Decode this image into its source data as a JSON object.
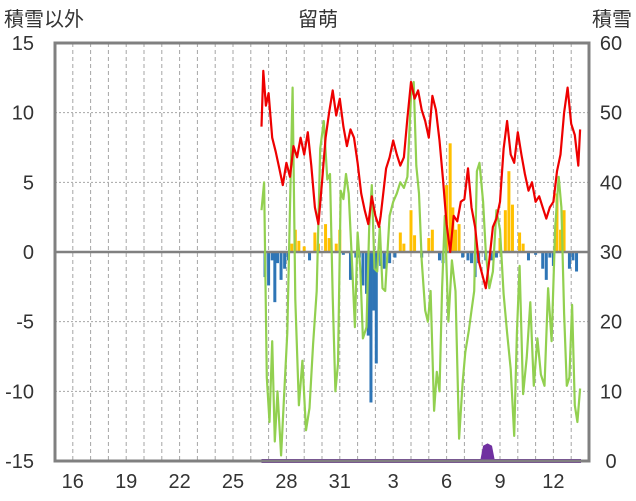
{
  "chart_data": {
    "type": "line",
    "title": "留萌",
    "left_axis_label": "積雪以外",
    "right_axis_label": "積雪",
    "ylim_left": [
      -15,
      15
    ],
    "yticks_left": [
      15,
      10,
      5,
      0,
      -5,
      -10,
      -15
    ],
    "ylim_right": [
      0,
      60
    ],
    "yticks_right": [
      60,
      50,
      40,
      30,
      20,
      10,
      0
    ],
    "xlim_days": [
      0,
      30
    ],
    "xtick_labels": [
      "16",
      "19",
      "22",
      "25",
      "28",
      "31",
      "3",
      "6",
      "9",
      "12"
    ],
    "xtick_days": [
      1,
      4,
      7,
      10,
      13,
      16,
      19,
      22,
      25,
      28
    ],
    "colors": {
      "temperature": "#ee0000",
      "sunshine": "#92d050",
      "precipitation_positive": "#ffc000",
      "precipitation_negative": "#2e75b6",
      "snow_depth": "#7030a0",
      "zero_line": "#808080",
      "frame": "#808080",
      "grid": "#a6a6a6"
    },
    "series": [
      {
        "axis": "left",
        "color": "#ee0000",
        "points": [
          [
            11.6,
            9.0
          ],
          [
            11.7,
            13.0
          ],
          [
            11.85,
            10.5
          ],
          [
            12.0,
            11.4
          ],
          [
            12.2,
            8.2
          ],
          [
            12.4,
            7.2
          ],
          [
            12.6,
            6.0
          ],
          [
            12.8,
            4.8
          ],
          [
            13.0,
            6.4
          ],
          [
            13.2,
            5.4
          ],
          [
            13.4,
            7.6
          ],
          [
            13.6,
            6.8
          ],
          [
            13.8,
            8.2
          ],
          [
            14.0,
            7.0
          ],
          [
            14.2,
            8.6
          ],
          [
            14.4,
            6.2
          ],
          [
            14.6,
            3.2
          ],
          [
            14.8,
            2.0
          ],
          [
            15.0,
            5.0
          ],
          [
            15.2,
            8.2
          ],
          [
            15.4,
            10.0
          ],
          [
            15.6,
            11.6
          ],
          [
            15.8,
            9.8
          ],
          [
            16.0,
            11.0
          ],
          [
            16.2,
            9.0
          ],
          [
            16.4,
            7.6
          ],
          [
            16.6,
            8.8
          ],
          [
            16.8,
            8.2
          ],
          [
            17.0,
            6.4
          ],
          [
            17.2,
            4.2
          ],
          [
            17.4,
            3.0
          ],
          [
            17.6,
            2.0
          ],
          [
            17.8,
            4.0
          ],
          [
            18.0,
            2.6
          ],
          [
            18.2,
            1.8
          ],
          [
            18.3,
            2.6
          ],
          [
            18.6,
            6.0
          ],
          [
            18.8,
            6.8
          ],
          [
            19.0,
            8.0
          ],
          [
            19.2,
            7.0
          ],
          [
            19.4,
            6.2
          ],
          [
            19.6,
            6.8
          ],
          [
            19.8,
            9.6
          ],
          [
            20.0,
            12.2
          ],
          [
            20.2,
            11.0
          ],
          [
            20.4,
            11.6
          ],
          [
            20.6,
            10.2
          ],
          [
            20.8,
            9.4
          ],
          [
            21.0,
            8.2
          ],
          [
            21.2,
            11.2
          ],
          [
            21.4,
            10.2
          ],
          [
            21.6,
            8.0
          ],
          [
            21.8,
            5.2
          ],
          [
            22.0,
            2.0
          ],
          [
            22.2,
            0.0
          ],
          [
            22.4,
            2.6
          ],
          [
            22.6,
            2.2
          ],
          [
            22.8,
            3.6
          ],
          [
            23.0,
            3.8
          ],
          [
            23.2,
            6.0
          ],
          [
            23.4,
            3.2
          ],
          [
            23.6,
            1.8
          ],
          [
            23.8,
            -0.6
          ],
          [
            24.0,
            -1.6
          ],
          [
            24.2,
            -2.6
          ],
          [
            24.4,
            -0.6
          ],
          [
            24.6,
            1.8
          ],
          [
            24.8,
            2.4
          ],
          [
            25.0,
            3.6
          ],
          [
            25.2,
            7.4
          ],
          [
            25.4,
            9.4
          ],
          [
            25.6,
            7.0
          ],
          [
            25.8,
            6.4
          ],
          [
            26.0,
            8.6
          ],
          [
            26.2,
            7.0
          ],
          [
            26.4,
            5.6
          ],
          [
            26.6,
            4.4
          ],
          [
            26.8,
            5.0
          ],
          [
            27.0,
            3.6
          ],
          [
            27.2,
            4.0
          ],
          [
            27.4,
            3.2
          ],
          [
            27.6,
            2.4
          ],
          [
            27.8,
            3.2
          ],
          [
            28.0,
            3.6
          ],
          [
            28.2,
            5.8
          ],
          [
            28.4,
            7.0
          ],
          [
            28.6,
            10.0
          ],
          [
            28.8,
            11.8
          ],
          [
            29.0,
            9.2
          ],
          [
            29.2,
            8.4
          ],
          [
            29.4,
            6.2
          ],
          [
            29.5,
            8.8
          ]
        ]
      },
      {
        "axis": "left",
        "color": "#92d050",
        "points": [
          [
            11.6,
            3.0
          ],
          [
            11.75,
            5.0
          ],
          [
            11.9,
            -9.0
          ],
          [
            12.05,
            -12.2
          ],
          [
            12.2,
            -6.4
          ],
          [
            12.35,
            -13.6
          ],
          [
            12.5,
            -10.0
          ],
          [
            12.7,
            -14.6
          ],
          [
            12.9,
            -9.6
          ],
          [
            13.05,
            -5.8
          ],
          [
            13.2,
            3.2
          ],
          [
            13.35,
            11.8
          ],
          [
            13.5,
            -3.4
          ],
          [
            13.7,
            -11.0
          ],
          [
            13.9,
            -7.8
          ],
          [
            14.1,
            -12.8
          ],
          [
            14.3,
            -11.2
          ],
          [
            14.5,
            -6.6
          ],
          [
            14.7,
            -2.8
          ],
          [
            14.9,
            7.4
          ],
          [
            15.1,
            9.4
          ],
          [
            15.3,
            5.2
          ],
          [
            15.45,
            5.6
          ],
          [
            15.6,
            -3.2
          ],
          [
            15.75,
            -10.0
          ],
          [
            15.9,
            -8.0
          ],
          [
            16.05,
            4.4
          ],
          [
            16.2,
            3.8
          ],
          [
            16.35,
            5.6
          ],
          [
            16.5,
            4.2
          ],
          [
            16.7,
            -1.2
          ],
          [
            16.85,
            -5.4
          ],
          [
            17.0,
            1.4
          ],
          [
            17.15,
            -1.2
          ],
          [
            17.3,
            -6.2
          ],
          [
            17.5,
            -5.4
          ],
          [
            17.65,
            1.8
          ],
          [
            17.8,
            4.8
          ],
          [
            17.95,
            -1.2
          ],
          [
            18.1,
            -1.4
          ],
          [
            18.25,
            1.8
          ],
          [
            18.4,
            -2.6
          ],
          [
            18.55,
            -2.8
          ],
          [
            18.8,
            2.6
          ],
          [
            19.0,
            3.6
          ],
          [
            19.2,
            4.2
          ],
          [
            19.4,
            5.0
          ],
          [
            19.6,
            4.6
          ],
          [
            19.8,
            5.4
          ],
          [
            20.0,
            11.2
          ],
          [
            20.15,
            12.2
          ],
          [
            20.3,
            6.2
          ],
          [
            20.45,
            4.2
          ],
          [
            20.6,
            -0.6
          ],
          [
            20.8,
            -4.2
          ],
          [
            20.95,
            -5.0
          ],
          [
            21.1,
            -2.8
          ],
          [
            21.3,
            -11.4
          ],
          [
            21.45,
            -8.6
          ],
          [
            21.6,
            -10.0
          ],
          [
            21.75,
            -2.6
          ],
          [
            21.9,
            2.6
          ],
          [
            22.1,
            -5.0
          ],
          [
            22.3,
            -0.6
          ],
          [
            22.5,
            -2.8
          ],
          [
            22.7,
            -13.4
          ],
          [
            22.9,
            -9.4
          ],
          [
            23.05,
            -7.2
          ],
          [
            23.25,
            -5.6
          ],
          [
            23.4,
            -4.2
          ],
          [
            23.55,
            -2.8
          ],
          [
            23.7,
            5.8
          ],
          [
            23.85,
            6.4
          ],
          [
            24.05,
            3.6
          ],
          [
            24.2,
            0.0
          ],
          [
            24.4,
            -2.6
          ],
          [
            24.6,
            -1.4
          ],
          [
            24.8,
            3.0
          ],
          [
            25.0,
            1.6
          ],
          [
            25.2,
            -3.0
          ],
          [
            25.4,
            -5.8
          ],
          [
            25.6,
            -8.4
          ],
          [
            25.8,
            -13.2
          ],
          [
            25.95,
            -5.8
          ],
          [
            26.1,
            -1.0
          ],
          [
            26.3,
            -10.2
          ],
          [
            26.5,
            -7.6
          ],
          [
            26.7,
            -3.6
          ],
          [
            26.9,
            -9.6
          ],
          [
            27.1,
            -6.2
          ],
          [
            27.3,
            -8.8
          ],
          [
            27.5,
            -9.6
          ],
          [
            27.7,
            -2.6
          ],
          [
            27.9,
            -6.4
          ],
          [
            28.1,
            1.8
          ],
          [
            28.3,
            5.4
          ],
          [
            28.45,
            3.2
          ],
          [
            28.6,
            -4.4
          ],
          [
            28.75,
            -9.6
          ],
          [
            28.9,
            -9.0
          ],
          [
            29.05,
            -3.8
          ],
          [
            29.2,
            -11.0
          ],
          [
            29.35,
            -12.2
          ],
          [
            29.5,
            -9.8
          ]
        ]
      }
    ],
    "bars": {
      "axis": "left",
      "positive_color": "#ffc000",
      "negative_color": "#2e75b6",
      "points": [
        [
          11.8,
          -1.8
        ],
        [
          12.0,
          -2.4
        ],
        [
          12.2,
          -0.6
        ],
        [
          12.35,
          -3.6
        ],
        [
          12.5,
          -0.8
        ],
        [
          12.7,
          -2.0
        ],
        [
          12.9,
          -1.2
        ],
        [
          13.1,
          -0.6
        ],
        [
          13.3,
          0.6
        ],
        [
          13.5,
          1.6
        ],
        [
          13.7,
          0.8
        ],
        [
          14.0,
          0.4
        ],
        [
          14.3,
          -0.6
        ],
        [
          14.6,
          1.4
        ],
        [
          14.8,
          0.6
        ],
        [
          15.2,
          2.0
        ],
        [
          15.4,
          1.0
        ],
        [
          15.8,
          0.6
        ],
        [
          16.0,
          1.6
        ],
        [
          16.2,
          -0.2
        ],
        [
          16.6,
          -2.0
        ],
        [
          16.9,
          -0.4
        ],
        [
          17.1,
          -0.4
        ],
        [
          17.3,
          -2.4
        ],
        [
          17.5,
          -3.0
        ],
        [
          17.6,
          -6.0
        ],
        [
          17.75,
          -10.8
        ],
        [
          17.9,
          -4.2
        ],
        [
          18.05,
          -8.0
        ],
        [
          18.3,
          -1.0
        ],
        [
          18.5,
          -1.2
        ],
        [
          18.8,
          -0.8
        ],
        [
          19.1,
          -0.4
        ],
        [
          19.4,
          1.4
        ],
        [
          19.6,
          0.6
        ],
        [
          20.0,
          3.0
        ],
        [
          20.2,
          1.2
        ],
        [
          20.6,
          -0.4
        ],
        [
          21.0,
          1.0
        ],
        [
          21.2,
          1.6
        ],
        [
          21.6,
          -0.6
        ],
        [
          21.8,
          -0.8
        ],
        [
          22.0,
          4.8
        ],
        [
          22.2,
          7.8
        ],
        [
          22.35,
          3.2
        ],
        [
          22.5,
          1.6
        ],
        [
          22.7,
          2.0
        ],
        [
          22.9,
          -0.4
        ],
        [
          23.2,
          -0.6
        ],
        [
          23.4,
          -0.8
        ],
        [
          23.6,
          -1.8
        ],
        [
          23.8,
          -0.8
        ],
        [
          24.2,
          -0.6
        ],
        [
          24.5,
          -0.6
        ],
        [
          24.8,
          -0.4
        ],
        [
          25.0,
          1.0
        ],
        [
          25.3,
          3.0
        ],
        [
          25.5,
          5.8
        ],
        [
          25.7,
          3.4
        ],
        [
          26.1,
          1.4
        ],
        [
          26.3,
          0.6
        ],
        [
          26.6,
          -0.6
        ],
        [
          27.0,
          -0.2
        ],
        [
          27.4,
          -1.2
        ],
        [
          27.6,
          -2.0
        ],
        [
          27.8,
          -0.4
        ],
        [
          28.0,
          -1.0
        ],
        [
          28.2,
          4.2
        ],
        [
          28.4,
          1.6
        ],
        [
          28.6,
          3.0
        ],
        [
          28.9,
          -1.2
        ],
        [
          29.1,
          -0.6
        ],
        [
          29.3,
          -1.4
        ]
      ]
    },
    "snow_depth": {
      "axis": "right",
      "color": "#7030a0",
      "points": [
        [
          11.6,
          0.0
        ],
        [
          24.0,
          0.0
        ],
        [
          24.15,
          2.0
        ],
        [
          24.3,
          2.2
        ],
        [
          24.45,
          2.0
        ],
        [
          24.6,
          0.0
        ],
        [
          29.55,
          0.0
        ]
      ]
    }
  }
}
